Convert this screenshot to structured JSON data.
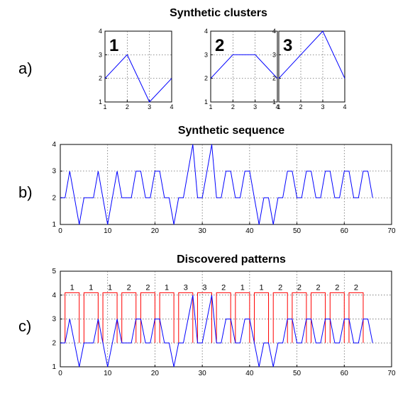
{
  "figure": {
    "title_a": "Synthetic clusters",
    "title_b": "Synthetic sequence",
    "title_c": "Discovered patterns",
    "label_a": "a)",
    "label_b": "b)",
    "label_c": "c)"
  },
  "colors": {
    "series": "#0000ff",
    "patterns": "#ff0000",
    "grid": "#555555"
  },
  "chart_data": [
    {
      "type": "line",
      "title": "Synthetic clusters",
      "panels": [
        {
          "label": "1",
          "x": [
            1,
            2,
            3,
            4
          ],
          "y": [
            2,
            3,
            1,
            2
          ]
        },
        {
          "label": "2",
          "x": [
            1,
            2,
            3,
            4
          ],
          "y": [
            2,
            3,
            3,
            2
          ]
        },
        {
          "label": "3",
          "x": [
            1,
            2,
            3,
            4
          ],
          "y": [
            2,
            3,
            4,
            2
          ]
        }
      ],
      "xlim": [
        1,
        4
      ],
      "ylim": [
        1,
        4
      ],
      "xticks": [
        1,
        2,
        3,
        4
      ],
      "yticks": [
        1,
        2,
        3,
        4
      ],
      "grid": true
    },
    {
      "type": "line",
      "title": "Synthetic sequence",
      "y": [
        2,
        2,
        3,
        2,
        1,
        2,
        2,
        2,
        3,
        2,
        1,
        2,
        3,
        2,
        2,
        2,
        3,
        3,
        2,
        2,
        3,
        3,
        2,
        2,
        1,
        2,
        2,
        3,
        4,
        2,
        2,
        3,
        4,
        2,
        2,
        3,
        3,
        2,
        2,
        3,
        3,
        2,
        1,
        2,
        2,
        1,
        2,
        2,
        3,
        3,
        2,
        2,
        3,
        3,
        2,
        2,
        3,
        3,
        2,
        2,
        3,
        3,
        2,
        2,
        3,
        3,
        2
      ],
      "xlim": [
        0,
        70
      ],
      "ylim": [
        1,
        4
      ],
      "xticks": [
        0,
        10,
        20,
        30,
        40,
        50,
        60,
        70
      ],
      "yticks": [
        1,
        2,
        3,
        4
      ],
      "grid": true
    },
    {
      "type": "line",
      "title": "Discovered patterns",
      "y": [
        2,
        2,
        3,
        2,
        1,
        2,
        2,
        2,
        3,
        2,
        1,
        2,
        3,
        2,
        2,
        2,
        3,
        3,
        2,
        2,
        3,
        3,
        2,
        2,
        1,
        2,
        2,
        3,
        4,
        2,
        2,
        3,
        4,
        2,
        2,
        3,
        3,
        2,
        2,
        3,
        3,
        2,
        1,
        2,
        2,
        1,
        2,
        2,
        3,
        3,
        2,
        2,
        3,
        3,
        2,
        2,
        3,
        3,
        2,
        2,
        3,
        3,
        2,
        2,
        3,
        3,
        2
      ],
      "segments": [
        {
          "start": 1,
          "end": 4,
          "label": "1"
        },
        {
          "start": 5,
          "end": 8,
          "label": "1"
        },
        {
          "start": 9,
          "end": 12,
          "label": "1"
        },
        {
          "start": 13,
          "end": 16,
          "label": "2"
        },
        {
          "start": 17,
          "end": 20,
          "label": "2"
        },
        {
          "start": 21,
          "end": 24,
          "label": "1"
        },
        {
          "start": 25,
          "end": 28,
          "label": "3"
        },
        {
          "start": 29,
          "end": 32,
          "label": "3"
        },
        {
          "start": 33,
          "end": 36,
          "label": "2"
        },
        {
          "start": 37,
          "end": 40,
          "label": "1"
        },
        {
          "start": 41,
          "end": 44,
          "label": "1"
        },
        {
          "start": 45,
          "end": 48,
          "label": "2"
        },
        {
          "start": 49,
          "end": 52,
          "label": "2"
        },
        {
          "start": 53,
          "end": 56,
          "label": "2"
        },
        {
          "start": 57,
          "end": 60,
          "label": "2"
        },
        {
          "start": 61,
          "end": 64,
          "label": "2"
        }
      ],
      "segment_level": [
        2,
        4.1
      ],
      "xlim": [
        0,
        70
      ],
      "ylim": [
        1,
        5
      ],
      "xticks": [
        0,
        10,
        20,
        30,
        40,
        50,
        60,
        70
      ],
      "yticks": [
        1,
        2,
        3,
        4,
        5
      ],
      "grid": true
    }
  ]
}
